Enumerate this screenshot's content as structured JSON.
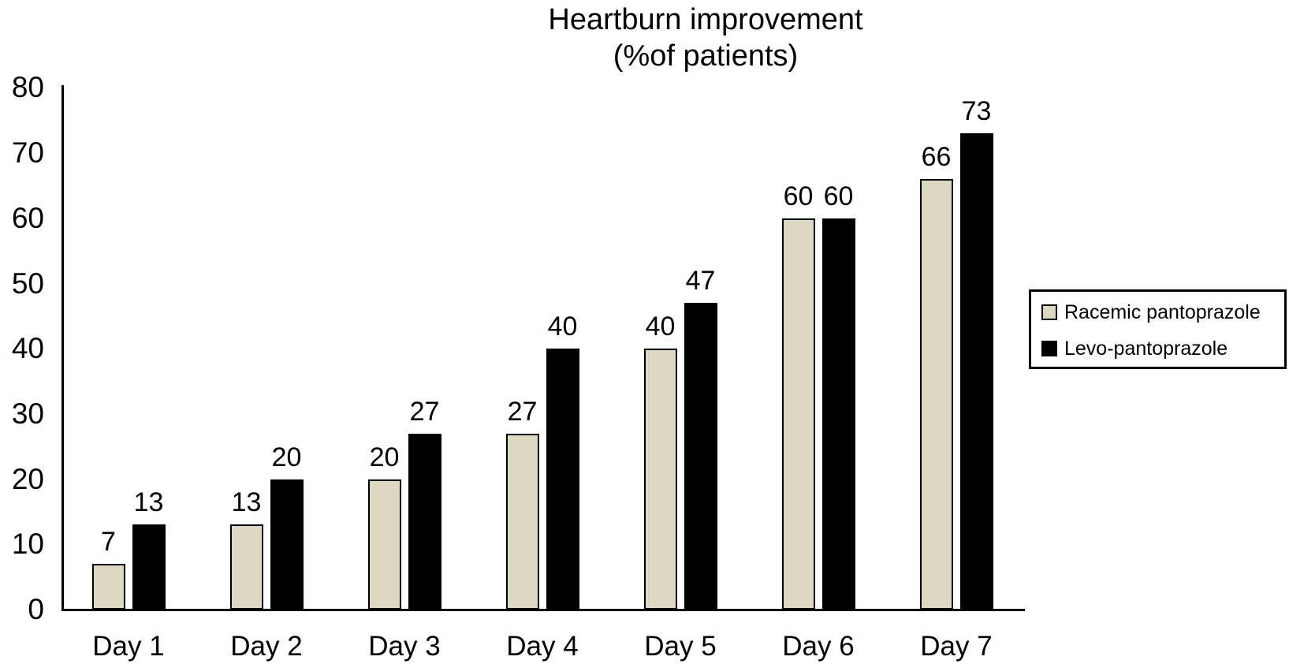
{
  "chart_data": {
    "type": "bar",
    "title": "Heartburn improvement",
    "subtitle": "(%of patients)",
    "categories": [
      "Day 1",
      "Day 2",
      "Day 3",
      "Day 4",
      "Day 5",
      "Day 6",
      "Day 7"
    ],
    "series": [
      {
        "name": "Racemic pantoprazole",
        "color": "#ddd8c2",
        "values": [
          7,
          13,
          20,
          27,
          40,
          60,
          66
        ]
      },
      {
        "name": "Levo-pantoprazole",
        "color": "#000000",
        "values": [
          13,
          20,
          27,
          40,
          47,
          60,
          73
        ]
      }
    ],
    "ylim": [
      0,
      80
    ],
    "yticks": [
      0,
      10,
      20,
      30,
      40,
      50,
      60,
      70,
      80
    ],
    "xlabel": "",
    "ylabel": "",
    "bar_value_labels": true,
    "grid": "off",
    "legend_position": "right",
    "colors": {
      "bar_outline": "#000000",
      "text": "#000000",
      "background": "#ffffff"
    }
  }
}
